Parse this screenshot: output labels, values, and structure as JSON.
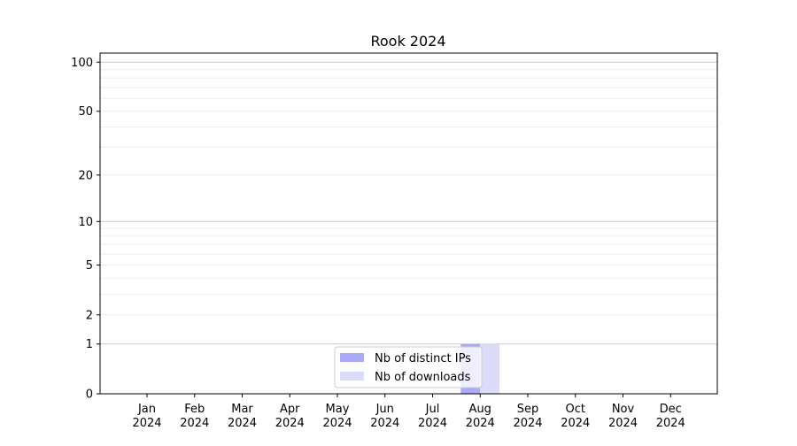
{
  "chart_data": {
    "type": "bar",
    "title": "Rook 2024",
    "xlabel": "",
    "ylabel": "",
    "yscale": "log(1+y)",
    "ylim": [
      0,
      113.6
    ],
    "yticks": [
      0,
      1,
      2,
      5,
      10,
      20,
      50,
      100
    ],
    "ytick_labels": [
      "0",
      "1",
      "2",
      "5",
      "10",
      "20",
      "50",
      "100"
    ],
    "grid": true,
    "legend_position": "lower-center",
    "categories": [
      "Jan\n2024",
      "Feb\n2024",
      "Mar\n2024",
      "Apr\n2024",
      "May\n2024",
      "Jun\n2024",
      "Jul\n2024",
      "Aug\n2024",
      "Sep\n2024",
      "Oct\n2024",
      "Nov\n2024",
      "Dec\n2024"
    ],
    "series": [
      {
        "name": "Nb of distinct IPs",
        "color": "#aaaaf8",
        "values": [
          0,
          0,
          0,
          0,
          0,
          0,
          0,
          1,
          0,
          0,
          0,
          0
        ]
      },
      {
        "name": "Nb of downloads",
        "color": "#dcdcfa",
        "values": [
          0,
          0,
          0,
          0,
          0,
          0,
          0,
          1,
          0,
          0,
          0,
          0
        ]
      }
    ]
  }
}
